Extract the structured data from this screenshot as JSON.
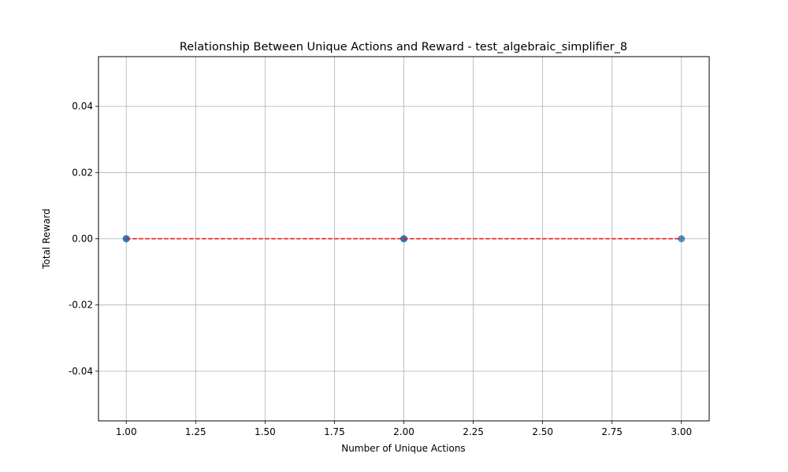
{
  "chart_data": {
    "type": "scatter",
    "title": "Relationship Between Unique Actions and Reward - test_algebraic_simplifier_8",
    "xlabel": "Number of Unique Actions",
    "ylabel": "Total Reward",
    "xlim": [
      0.9,
      3.1
    ],
    "ylim": [
      -0.055,
      0.055
    ],
    "xticks": [
      "1.00",
      "1.25",
      "1.50",
      "1.75",
      "2.00",
      "2.25",
      "2.50",
      "2.75",
      "3.00"
    ],
    "yticks": [
      "0.04",
      "0.02",
      "0.00",
      "-0.02",
      "-0.04"
    ],
    "grid": true,
    "series": [
      {
        "type": "scatter",
        "color": "#1f77b4",
        "points": [
          {
            "x": 1,
            "y": 0
          },
          {
            "x": 1,
            "y": 0
          },
          {
            "x": 2,
            "y": 0
          },
          {
            "x": 2,
            "y": 0
          },
          {
            "x": 3,
            "y": 0
          }
        ]
      },
      {
        "type": "line",
        "style": "dashed",
        "color": "#ff0000",
        "points": [
          {
            "x": 1,
            "y": 0
          },
          {
            "x": 3,
            "y": 0
          }
        ]
      }
    ]
  }
}
